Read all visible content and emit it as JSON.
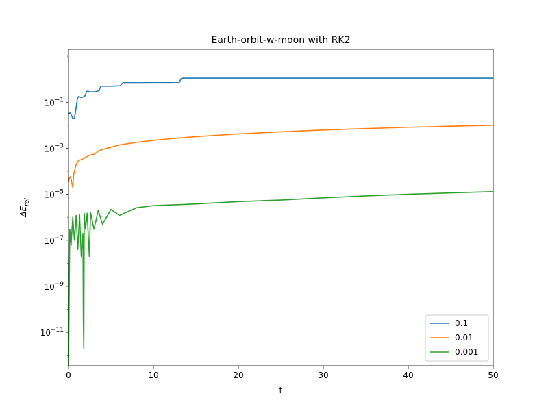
{
  "chart_data": {
    "type": "line",
    "title": "Earth-orbit-w-moon with RK2",
    "xlabel": "t",
    "ylabel": "ΔE_rel",
    "xlim": [
      0,
      50
    ],
    "ylim": [
      3.5e-13,
      20
    ],
    "yscale": "log",
    "grid": false,
    "legend_position": "lower-right",
    "xticks": [
      0,
      10,
      20,
      30,
      40,
      50
    ],
    "yticks": [
      {
        "value": 1e-11,
        "base": "10",
        "exp": "−11"
      },
      {
        "value": 1e-09,
        "base": "10",
        "exp": "−9"
      },
      {
        "value": 1e-07,
        "base": "10",
        "exp": "−7"
      },
      {
        "value": 1e-05,
        "base": "10",
        "exp": "−5"
      },
      {
        "value": 0.001,
        "base": "10",
        "exp": "−3"
      },
      {
        "value": 0.1,
        "base": "10",
        "exp": "−1"
      }
    ],
    "series": [
      {
        "name": "0.1",
        "color": "#1f77b4",
        "x": [
          0,
          0.15,
          0.3,
          0.5,
          0.7,
          0.9,
          1.05,
          1.2,
          1.5,
          1.9,
          2.15,
          2.3,
          2.6,
          3.2,
          3.6,
          3.75,
          3.9,
          5,
          6.1,
          6.3,
          6.45,
          8,
          10,
          12,
          13.05,
          13.25,
          13.4,
          20,
          30,
          40,
          50
        ],
        "y": [
          0.03,
          0.035,
          0.03,
          0.02,
          0.02,
          0.06,
          0.15,
          0.18,
          0.16,
          0.18,
          0.3,
          0.3,
          0.28,
          0.29,
          0.32,
          0.45,
          0.5,
          0.5,
          0.52,
          0.65,
          0.72,
          0.72,
          0.73,
          0.73,
          0.74,
          1.05,
          1.12,
          1.12,
          1.12,
          1.12,
          1.12
        ]
      },
      {
        "name": "0.01",
        "color": "#ff7f0e",
        "x": [
          0,
          0.1,
          0.25,
          0.4,
          0.5,
          0.6,
          0.9,
          1.2,
          1.5,
          2,
          2.5,
          3,
          3.5,
          4,
          5,
          6,
          8,
          10,
          12,
          15,
          20,
          25,
          30,
          35,
          40,
          45,
          50
        ],
        "y": [
          3.5e-05,
          5e-05,
          6e-05,
          3e-05,
          2e-05,
          7e-05,
          0.0002,
          0.0003,
          0.00032,
          0.0004,
          0.0005,
          0.00055,
          0.00075,
          0.0009,
          0.0011,
          0.0014,
          0.0018,
          0.0022,
          0.0026,
          0.0032,
          0.0042,
          0.0052,
          0.0062,
          0.0072,
          0.0082,
          0.0091,
          0.01
        ]
      },
      {
        "name": "0.001",
        "color": "#2ca02c",
        "x": [
          0,
          0.15,
          0.3,
          0.5,
          0.7,
          0.9,
          1.1,
          1.3,
          1.5,
          1.7,
          1.75,
          1.8,
          1.85,
          2.0,
          2.2,
          2.45,
          2.6,
          3.0,
          3.5,
          4.0,
          5.0,
          6.0,
          8.0,
          10,
          15,
          20,
          25,
          30,
          35,
          40,
          45,
          50
        ],
        "y": [
          2.2e-13,
          3e-07,
          6e-08,
          1e-06,
          1e-07,
          1.2e-06,
          4e-08,
          1.3e-06,
          2e-08,
          2e-07,
          2.5e-11,
          2e-12,
          1.5e-06,
          3e-07,
          1.5e-06,
          2e-08,
          1.6e-06,
          3e-07,
          2e-06,
          5e-07,
          2.2e-06,
          1.2e-06,
          2.6e-06,
          3.2e-06,
          3.8e-06,
          4.8e-06,
          5.6e-06,
          7e-06,
          8.5e-06,
          1e-05,
          1.15e-05,
          1.3e-05
        ]
      }
    ]
  }
}
